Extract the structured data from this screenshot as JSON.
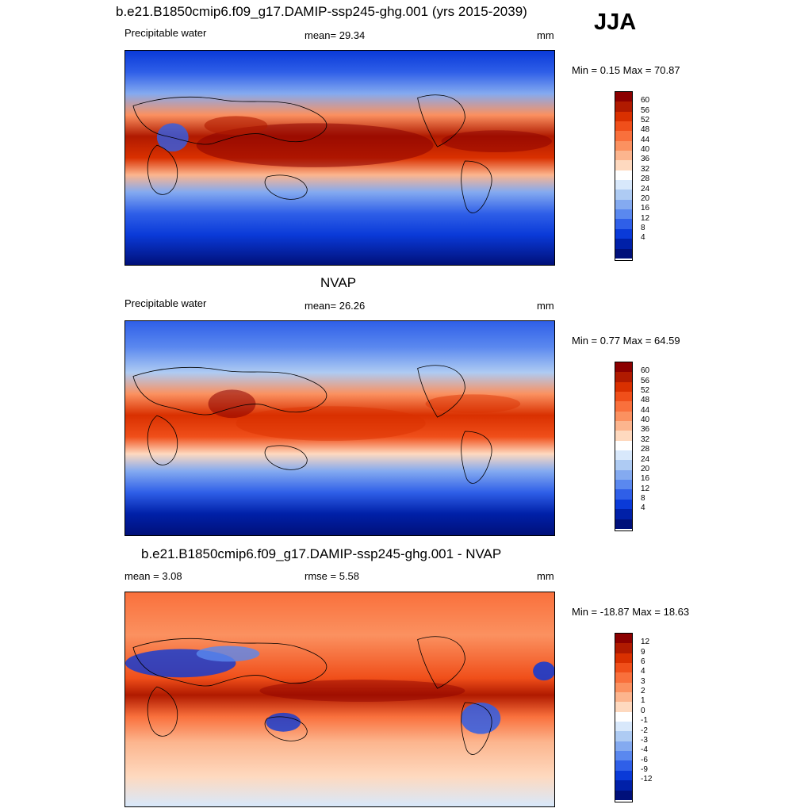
{
  "season": "JJA",
  "panels": [
    {
      "title": "b.e21.B1850cmip6.f09_g17.DAMIP-ssp245-ghg.001 (yrs 2015-2039)",
      "left_label": "Precipitable water",
      "center_label": "mean=  29.34",
      "units": "mm",
      "minmax": "Min =   0.15 Max =  70.87",
      "ticks": [
        "60",
        "56",
        "52",
        "48",
        "44",
        "40",
        "36",
        "32",
        "28",
        "24",
        "20",
        "16",
        "12",
        "8",
        "4"
      ]
    },
    {
      "title": "NVAP",
      "left_label": "Precipitable water",
      "center_label": "mean=  26.26",
      "units": "mm",
      "minmax": "Min =   0.77 Max =  64.59",
      "ticks": [
        "60",
        "56",
        "52",
        "48",
        "44",
        "40",
        "36",
        "32",
        "28",
        "24",
        "20",
        "16",
        "12",
        "8",
        "4"
      ]
    },
    {
      "title": "b.e21.B1850cmip6.f09_g17.DAMIP-ssp245-ghg.001 - NVAP",
      "left_label": "mean =   3.08",
      "center_label": "rmse =   5.58",
      "units": "mm",
      "minmax": "Min = -18.87 Max =  18.63",
      "ticks": [
        "12",
        "9",
        "6",
        "4",
        "3",
        "2",
        "1",
        "0",
        "-1",
        "-2",
        "-3",
        "-4",
        "-6",
        "-9",
        "-12"
      ]
    }
  ],
  "colors": {
    "abs_scale": [
      "#8b0000",
      "#b01a00",
      "#d93000",
      "#f04f1a",
      "#f9703c",
      "#fb9160",
      "#fcb58e",
      "#fed9bf",
      "#ffffff",
      "#d8e8fb",
      "#aecbf3",
      "#84aaf0",
      "#5a88ef",
      "#2f5fe8",
      "#0a3ad8",
      "#0020a8",
      "#00107a"
    ],
    "diff_scale": [
      "#8b0000",
      "#b01a00",
      "#d93000",
      "#f04f1a",
      "#f9703c",
      "#fb9160",
      "#fcb58e",
      "#fed9bf",
      "#ffffff",
      "#d8e8fb",
      "#aecbf3",
      "#84aaf0",
      "#5a88ef",
      "#2f5fe8",
      "#0a3ad8",
      "#0020a8",
      "#00107a"
    ]
  }
}
